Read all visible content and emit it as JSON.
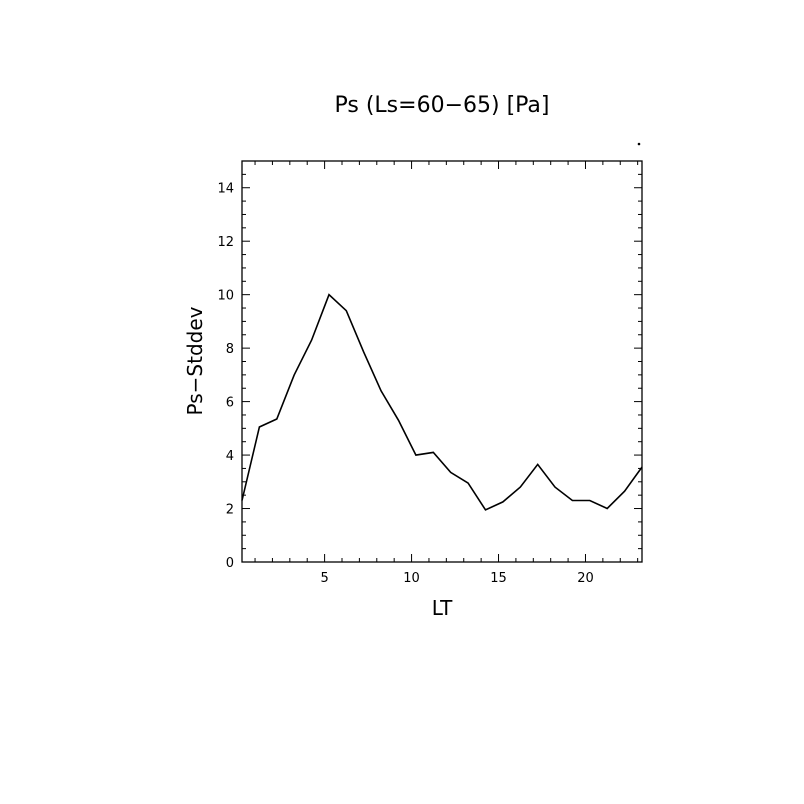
{
  "chart_data": {
    "type": "line",
    "title": "Ps (Ls=60−65) [Pa]",
    "xlabel": "LT",
    "ylabel": "Ps−Stddev",
    "xlim": [
      0.25,
      23.25
    ],
    "ylim": [
      0,
      15
    ],
    "x_ticks": [
      5,
      10,
      15,
      20
    ],
    "y_ticks": [
      0,
      2,
      4,
      6,
      8,
      10,
      12,
      14
    ],
    "grid": false,
    "series": [
      {
        "x": [
          0.25,
          1.25,
          2.25,
          3.25,
          4.25,
          5.25,
          6.25,
          7.25,
          8.25,
          9.25,
          10.25,
          11.25,
          12.25,
          13.25,
          14.25,
          15.25,
          16.25,
          17.25,
          18.25,
          19.25,
          20.25,
          21.25,
          22.25,
          23.25
        ],
        "y": [
          2.3,
          5.05,
          5.35,
          7.0,
          8.3,
          10.0,
          9.4,
          7.85,
          6.4,
          5.3,
          4.0,
          4.1,
          3.35,
          2.95,
          1.95,
          2.25,
          2.8,
          3.65,
          2.8,
          2.3,
          2.3,
          2.0,
          2.65,
          3.55
        ],
        "color": "#000000"
      }
    ]
  }
}
